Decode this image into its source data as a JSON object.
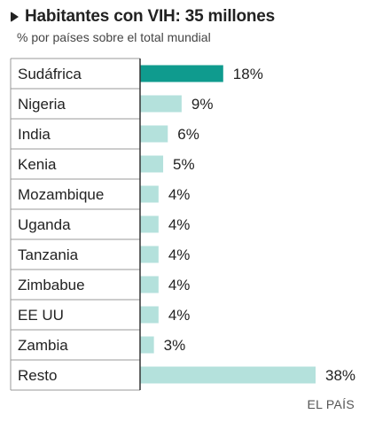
{
  "header": {
    "title": "Habitantes con VIH: 35 millones",
    "subtitle": "% por países sobre el total mundial"
  },
  "source": "EL PAÍS",
  "chart_data": {
    "type": "bar",
    "orientation": "horizontal",
    "title": "Habitantes con VIH: 35 millones",
    "subtitle": "% por países sobre el total mundial",
    "categories": [
      "Sudáfrica",
      "Nigeria",
      "India",
      "Kenia",
      "Mozambique",
      "Uganda",
      "Tanzania",
      "Zimbabue",
      "EE UU",
      "Zambia",
      "Resto"
    ],
    "values": [
      18,
      9,
      6,
      5,
      4,
      4,
      4,
      4,
      4,
      3,
      38
    ],
    "value_labels": [
      "18%",
      "9%",
      "6%",
      "5%",
      "4%",
      "4%",
      "4%",
      "4%",
      "4%",
      "3%",
      "38%"
    ],
    "unit": "%",
    "colors": {
      "highlight": "#0f9b8e",
      "bar": "#b4e1dc",
      "axis": "#333333",
      "row_border": "#999999"
    },
    "highlight_index": 0,
    "xlim": [
      0,
      38
    ],
    "grid": false,
    "legend": "none"
  }
}
